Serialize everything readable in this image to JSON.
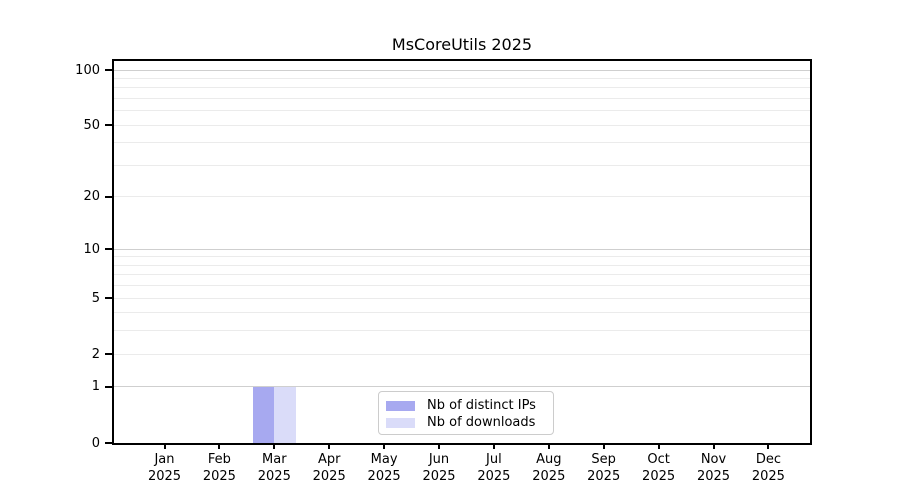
{
  "chart_data": {
    "type": "bar",
    "title": "MsCoreUtils 2025",
    "categories": [
      {
        "month": "Jan",
        "year": "2025"
      },
      {
        "month": "Feb",
        "year": "2025"
      },
      {
        "month": "Mar",
        "year": "2025"
      },
      {
        "month": "Apr",
        "year": "2025"
      },
      {
        "month": "May",
        "year": "2025"
      },
      {
        "month": "Jun",
        "year": "2025"
      },
      {
        "month": "Jul",
        "year": "2025"
      },
      {
        "month": "Aug",
        "year": "2025"
      },
      {
        "month": "Sep",
        "year": "2025"
      },
      {
        "month": "Oct",
        "year": "2025"
      },
      {
        "month": "Nov",
        "year": "2025"
      },
      {
        "month": "Dec",
        "year": "2025"
      }
    ],
    "series": [
      {
        "name": "Nb of distinct IPs",
        "color": "#a7a9f0",
        "values": [
          0,
          0,
          1,
          0,
          0,
          0,
          0,
          0,
          0,
          0,
          0,
          0
        ]
      },
      {
        "name": "Nb of downloads",
        "color": "#dadcf9",
        "values": [
          0,
          0,
          1,
          0,
          0,
          0,
          0,
          0,
          0,
          0,
          0,
          0
        ]
      }
    ],
    "xlabel": "",
    "ylabel": "",
    "y_ticks": [
      0,
      1,
      2,
      5,
      10,
      20,
      50,
      100
    ],
    "y_scale": "log1p",
    "ylim": [
      0,
      100
    ],
    "grid": "horizontal",
    "grid_major_at": [
      1,
      10,
      100
    ],
    "grid_minor_color": "#ebebeb",
    "grid_major_color": "#cfcfcf",
    "legend_position": "inside-bottom-center",
    "background_color": "#ffffff",
    "text_color": "#000000"
  }
}
